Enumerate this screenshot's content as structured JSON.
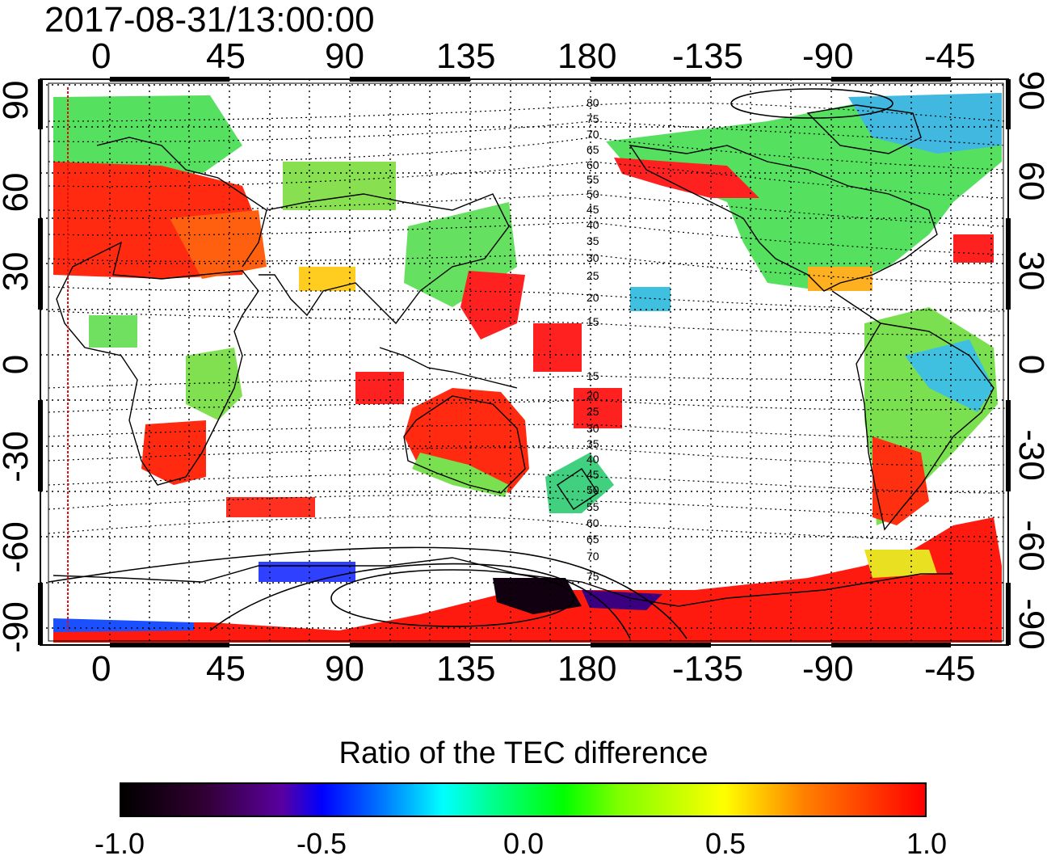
{
  "timestamp": "2017-08-31/13:00:00",
  "map": {
    "lon_ticks": [
      "0",
      "45",
      "90",
      "135",
      "180",
      "-135",
      "-90",
      "-45"
    ],
    "lat_ticks_left": [
      "90",
      "60",
      "30",
      "0",
      "-30",
      "-60",
      "-90"
    ],
    "lat_ticks_right": [
      "90",
      "60",
      "30",
      "0",
      "-30",
      "-60",
      "-90"
    ],
    "contour_labels_north": [
      "80",
      "75",
      "70",
      "65",
      "60",
      "55",
      "50",
      "45",
      "40",
      "35",
      "30",
      "25",
      "20",
      "15"
    ],
    "contour_labels_south": [
      "15",
      "20",
      "25",
      "30",
      "35",
      "40",
      "45",
      "50",
      "55",
      "60",
      "65",
      "70",
      "75"
    ]
  },
  "colorbar": {
    "title": "Ratio of the TEC difference",
    "ticks": [
      "-1.0",
      "-0.5",
      "0.0",
      "0.5",
      "1.0"
    ],
    "colors": [
      "#000000",
      "#5a00a0",
      "#0000ff",
      "#00ffff",
      "#00ff00",
      "#ffff00",
      "#ff0000"
    ]
  }
}
